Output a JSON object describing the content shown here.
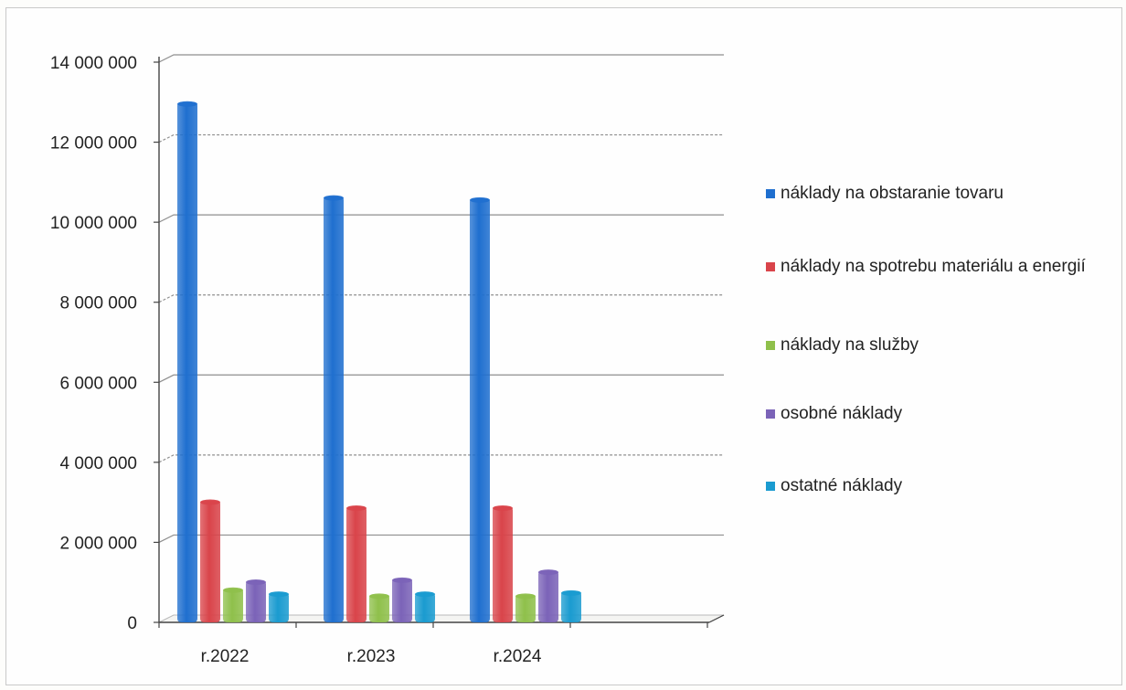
{
  "chart_data": {
    "type": "bar",
    "categories": [
      "r.2022",
      "r.2023",
      "r.2024"
    ],
    "series": [
      {
        "name": "náklady na obstaranie tovaru",
        "values": [
          13000000,
          10650000,
          10600000
        ],
        "color": "#1f6fcf"
      },
      {
        "name": "náklady na spotrebu  materiálu a energií",
        "values": [
          3050000,
          2900000,
          2900000
        ],
        "color": "#d9444a"
      },
      {
        "name": "náklady na služby",
        "values": [
          850000,
          700000,
          700000
        ],
        "color": "#8fc04b"
      },
      {
        "name": "osobné náklady",
        "values": [
          1050000,
          1100000,
          1300000
        ],
        "color": "#7b63b8"
      },
      {
        "name": "ostatné náklady",
        "values": [
          750000,
          750000,
          780000
        ],
        "color": "#1a9bd0"
      }
    ],
    "yticks": [
      "0",
      "2 000 000",
      "4 000 000",
      "6 000 000",
      "8 000 000",
      "10 000 000",
      "12 000 000",
      "14 000 000"
    ],
    "ylim": [
      0,
      14000000
    ],
    "grid": true,
    "legend_position": "right",
    "title": "",
    "xlabel": "",
    "ylabel": ""
  }
}
